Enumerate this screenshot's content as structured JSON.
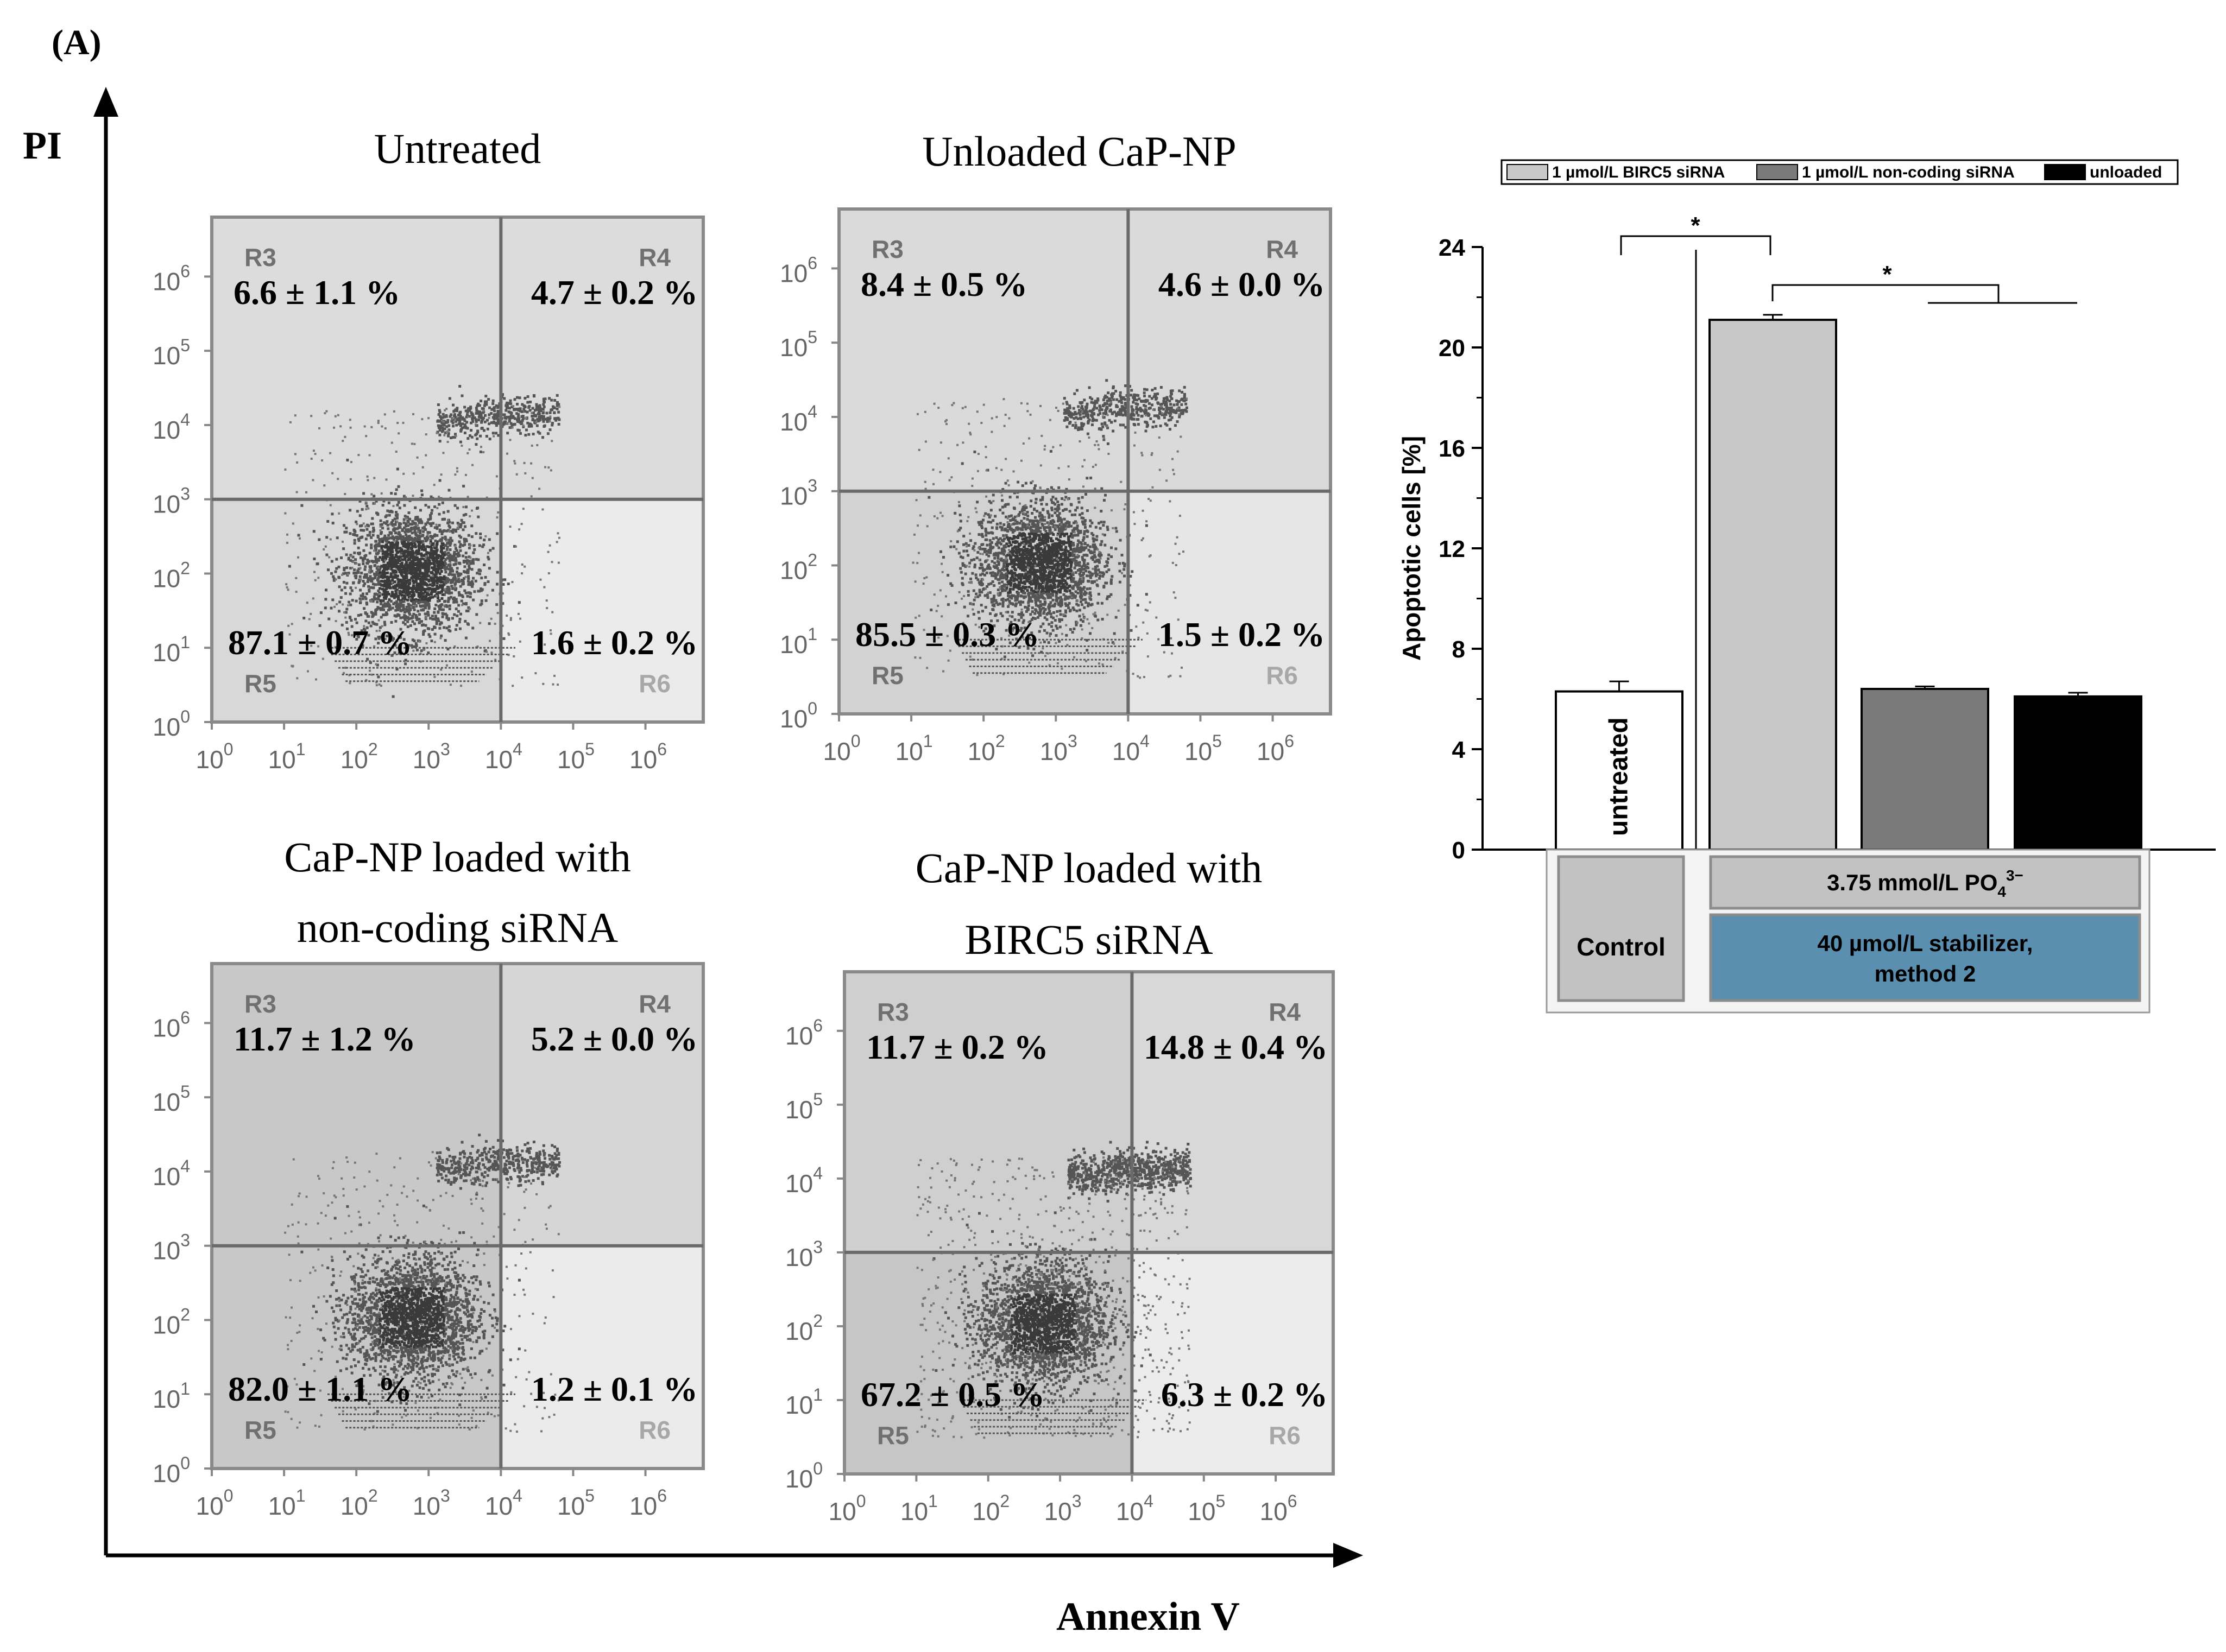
{
  "figure": {
    "panel_label": "(A)",
    "y_axis_label": "PI",
    "x_axis_label": "Annexin V"
  },
  "flow_panels": [
    {
      "title_lines": [
        "Untreated"
      ],
      "regions": {
        "R3": "6.6 ± 1.1 %",
        "R4": "4.7 ± 0.2 %",
        "R5": "87.1 ± 0.7 %",
        "R6": "1.6 ± 0.2 %"
      },
      "region_labels": [
        "R3",
        "R4",
        "R5",
        "R6"
      ]
    },
    {
      "title_lines": [
        "Unloaded CaP-NP"
      ],
      "regions": {
        "R3": "8.4 ± 0.5 %",
        "R4": "4.6 ± 0.0 %",
        "R5": "85.5 ± 0.3 %",
        "R6": "1.5 ± 0.2 %"
      },
      "region_labels": [
        "R3",
        "R4",
        "R5",
        "R6"
      ]
    },
    {
      "title_lines": [
        "CaP-NP loaded with",
        "non-coding siRNA"
      ],
      "regions": {
        "R3": "11.7 ± 1.2 %",
        "R4": "5.2 ± 0.0 %",
        "R5": "82.0 ± 1.1 %",
        "R6": "1.2 ± 0.1 %"
      },
      "region_labels": [
        "R3",
        "R4",
        "R5",
        "R6"
      ]
    },
    {
      "title_lines": [
        "CaP-NP loaded with",
        "BIRC5 siRNA"
      ],
      "regions": {
        "R3": "11.7 ± 0.2 %",
        "R4": "14.8 ± 0.4 %",
        "R5": "67.2 ± 0.5 %",
        "R6": "6.3 ± 0.2 %"
      },
      "region_labels": [
        "R3",
        "R4",
        "R5",
        "R6"
      ]
    }
  ],
  "flow_axis_ticks": {
    "exponents": [
      "0",
      "1",
      "2",
      "3",
      "4",
      "5",
      "6"
    ],
    "base": "10"
  },
  "chart_data": {
    "type": "bar",
    "ylabel": "Apoptotic cells [%]",
    "ylim": [
      0,
      24
    ],
    "yticks": [
      "0",
      "4",
      "8",
      "12",
      "16",
      "20",
      "24"
    ],
    "legend": [
      {
        "label": "1 µmol/L BIRC5 siRNA",
        "color": "#c8c8c8"
      },
      {
        "label": "1 µmol/L non-coding siRNA",
        "color": "#7a7a7a"
      },
      {
        "label": "unloaded",
        "color": "#000000"
      }
    ],
    "bars": [
      {
        "label": "untreated",
        "value": 6.3,
        "error": 0.4,
        "color": "#ffffff"
      },
      {
        "label": "",
        "value": 21.1,
        "error": 0.2,
        "color": "#c8c8c8"
      },
      {
        "label": "",
        "value": 6.4,
        "error": 0.1,
        "color": "#7a7a7a"
      },
      {
        "label": "",
        "value": 6.1,
        "error": 0.15,
        "color": "#000000"
      }
    ],
    "significance_marks": [
      "*",
      "*"
    ],
    "condition_table": {
      "control": "Control",
      "phosphate_main": "3.75 mmol/L PO",
      "phosphate_sub": "4",
      "phosphate_sup": "3−",
      "stabilizer_line1": "40 µmol/L stabilizer,",
      "stabilizer_line2": "method 2",
      "control_color": "#c2c2c2",
      "phosphate_color": "#c2c2c2",
      "stabilizer_color": "#5b8fb0"
    }
  }
}
